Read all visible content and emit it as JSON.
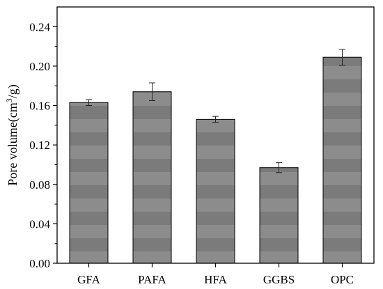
{
  "chart_data": {
    "type": "bar",
    "title": "",
    "xlabel": "",
    "ylabel": "Pore volume(cm³/g)",
    "ylabel_parts": {
      "before": "Pore volume(cm",
      "sup": "3",
      "after": "/g)"
    },
    "categories": [
      "GFA",
      "PAFA",
      "HFA",
      "GGBS",
      "OPC"
    ],
    "values": [
      0.163,
      0.174,
      0.146,
      0.097,
      0.209
    ],
    "errors": [
      0.003,
      0.009,
      0.003,
      0.005,
      0.008
    ],
    "ylim": [
      0,
      0.26
    ],
    "yticks": [
      0.0,
      0.04,
      0.08,
      0.12,
      0.16,
      0.2,
      0.24
    ],
    "ytick_labels": [
      "0.00",
      "0.04",
      "0.08",
      "0.12",
      "0.16",
      "0.20",
      "0.24"
    ],
    "bar_color": "#8c8c8c",
    "bar_stripe_color": "#7a7a7a",
    "grid": false,
    "legend": "none"
  }
}
